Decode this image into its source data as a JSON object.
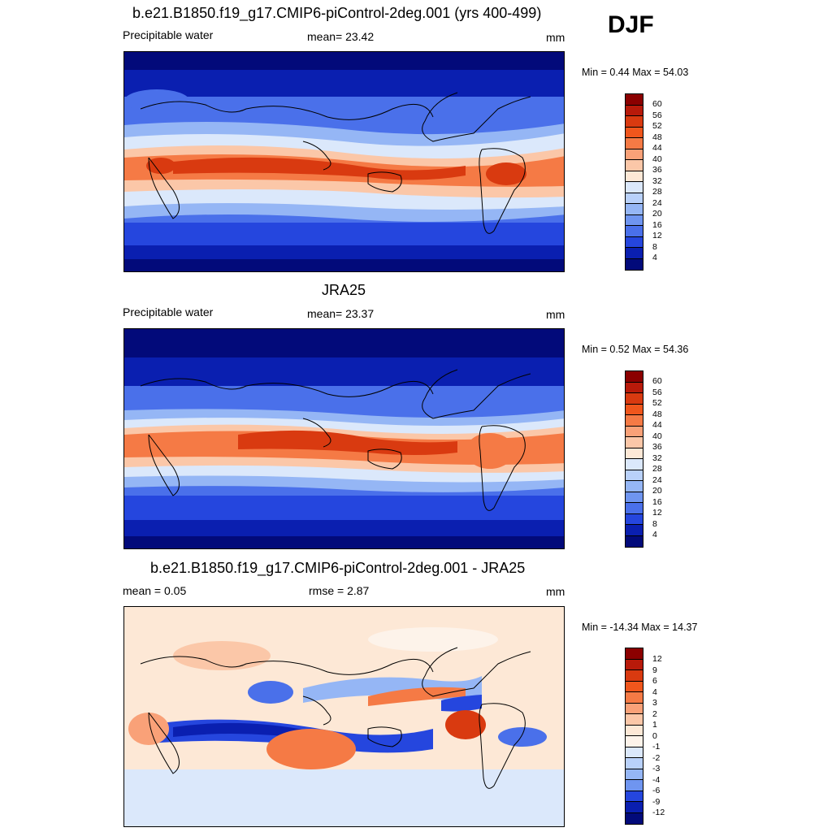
{
  "header": {
    "season": "DJF"
  },
  "panels": [
    {
      "id": "model",
      "title": "b.e21.B1850.f19_g17.CMIP6-piControl-2deg.001 (yrs 400-499)",
      "left_label": "Precipitable water",
      "center_label": "mean=  23.42",
      "units": "mm",
      "minmax": "Min =   0.44 Max =  54.03",
      "colorbar": {
        "labels": [
          "60",
          "56",
          "52",
          "48",
          "44",
          "40",
          "36",
          "32",
          "28",
          "24",
          "20",
          "16",
          "12",
          "8",
          "4"
        ],
        "colors": [
          "#8b0000",
          "#b81a0a",
          "#d93a10",
          "#f0561c",
          "#f57a45",
          "#f9a178",
          "#fbc7a8",
          "#fde8d6",
          "#dbe8fb",
          "#b9d1fa",
          "#95b6f5",
          "#6f95f0",
          "#4a70ea",
          "#2546de",
          "#0a1fb0",
          "#020a7a"
        ]
      }
    },
    {
      "id": "obs",
      "title": "JRA25",
      "left_label": "Precipitable water",
      "center_label": "mean=  23.37",
      "units": "mm",
      "minmax": "Min =   0.52 Max =  54.36",
      "colorbar": {
        "labels": [
          "60",
          "56",
          "52",
          "48",
          "44",
          "40",
          "36",
          "32",
          "28",
          "24",
          "20",
          "16",
          "12",
          "8",
          "4"
        ],
        "colors": [
          "#8b0000",
          "#b81a0a",
          "#d93a10",
          "#f0561c",
          "#f57a45",
          "#f9a178",
          "#fbc7a8",
          "#fde8d6",
          "#dbe8fb",
          "#b9d1fa",
          "#95b6f5",
          "#6f95f0",
          "#4a70ea",
          "#2546de",
          "#0a1fb0",
          "#020a7a"
        ]
      }
    },
    {
      "id": "diff",
      "title": "b.e21.B1850.f19_g17.CMIP6-piControl-2deg.001 - JRA25",
      "left_label": "mean =   0.05",
      "center_label": "rmse =   2.87",
      "units": "mm",
      "minmax": "Min = -14.34 Max =  14.37",
      "colorbar": {
        "labels": [
          "12",
          "9",
          "6",
          "4",
          "3",
          "2",
          "1",
          "0",
          "-1",
          "-2",
          "-3",
          "-4",
          "-6",
          "-9",
          "-12"
        ],
        "colors": [
          "#8b0000",
          "#b81a0a",
          "#d93a10",
          "#f0561c",
          "#f57a45",
          "#f9a178",
          "#fbc7a8",
          "#fde8d6",
          "#fdf3ea",
          "#dbe8fb",
          "#b9d1fa",
          "#95b6f5",
          "#6f95f0",
          "#2546de",
          "#0a1fb0",
          "#020a7a"
        ]
      }
    }
  ]
}
